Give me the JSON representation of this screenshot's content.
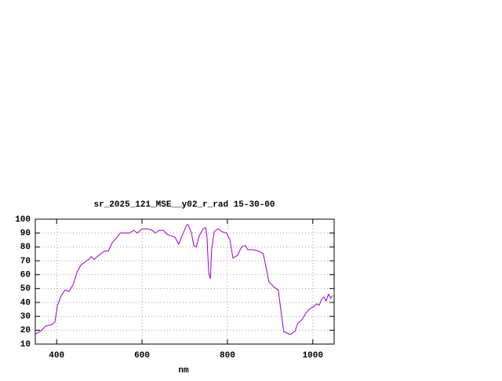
{
  "chart_data": {
    "type": "line",
    "title": "sr_2025_121_MSE__y02_r_rad 15-30-00",
    "x_label": "nm",
    "x": [
      350,
      365,
      374,
      389,
      396,
      402,
      411,
      420,
      429,
      439,
      448,
      457,
      466,
      475,
      481,
      488,
      499,
      512,
      521,
      530,
      539,
      549,
      558,
      571,
      580,
      589,
      600,
      613,
      624,
      631,
      640,
      650,
      659,
      668,
      677,
      686,
      695,
      705,
      708,
      716,
      721,
      727,
      734,
      743,
      749,
      752,
      756,
      760,
      763,
      769,
      778,
      787,
      798,
      806,
      813,
      824,
      833,
      842,
      848,
      861,
      873,
      884,
      892,
      897,
      906,
      914,
      919,
      925,
      932,
      939,
      947,
      958,
      965,
      976,
      983,
      991,
      1002,
      1009,
      1015,
      1020,
      1026,
      1031,
      1037,
      1042,
      1046
    ],
    "series": [
      {
        "color": "#9400d3",
        "values": [
          17,
          20,
          23,
          24,
          26,
          38,
          45,
          49,
          48,
          53,
          62,
          67,
          69,
          71,
          73,
          71,
          74,
          77,
          77,
          83,
          86,
          90,
          90,
          90,
          92,
          90,
          93,
          93,
          92,
          90,
          92,
          92,
          89,
          88,
          87,
          82,
          89,
          96,
          96,
          90,
          81,
          80,
          88,
          93,
          94,
          88,
          62,
          57,
          78,
          91,
          93,
          91,
          90,
          85,
          72,
          74,
          80,
          81,
          78,
          78,
          77,
          75,
          63,
          55,
          52,
          50,
          49,
          35,
          19,
          18,
          17,
          19,
          25,
          28,
          32,
          35,
          37,
          39,
          38,
          42,
          44,
          41,
          46,
          43,
          45
        ]
      }
    ],
    "xlim": [
      350,
      1050
    ],
    "ylim": [
      10,
      100
    ],
    "xticks": [
      400,
      600,
      800,
      1000
    ],
    "yticks": [
      10,
      20,
      30,
      40,
      50,
      60,
      70,
      80,
      90,
      100
    ],
    "grid": true
  }
}
